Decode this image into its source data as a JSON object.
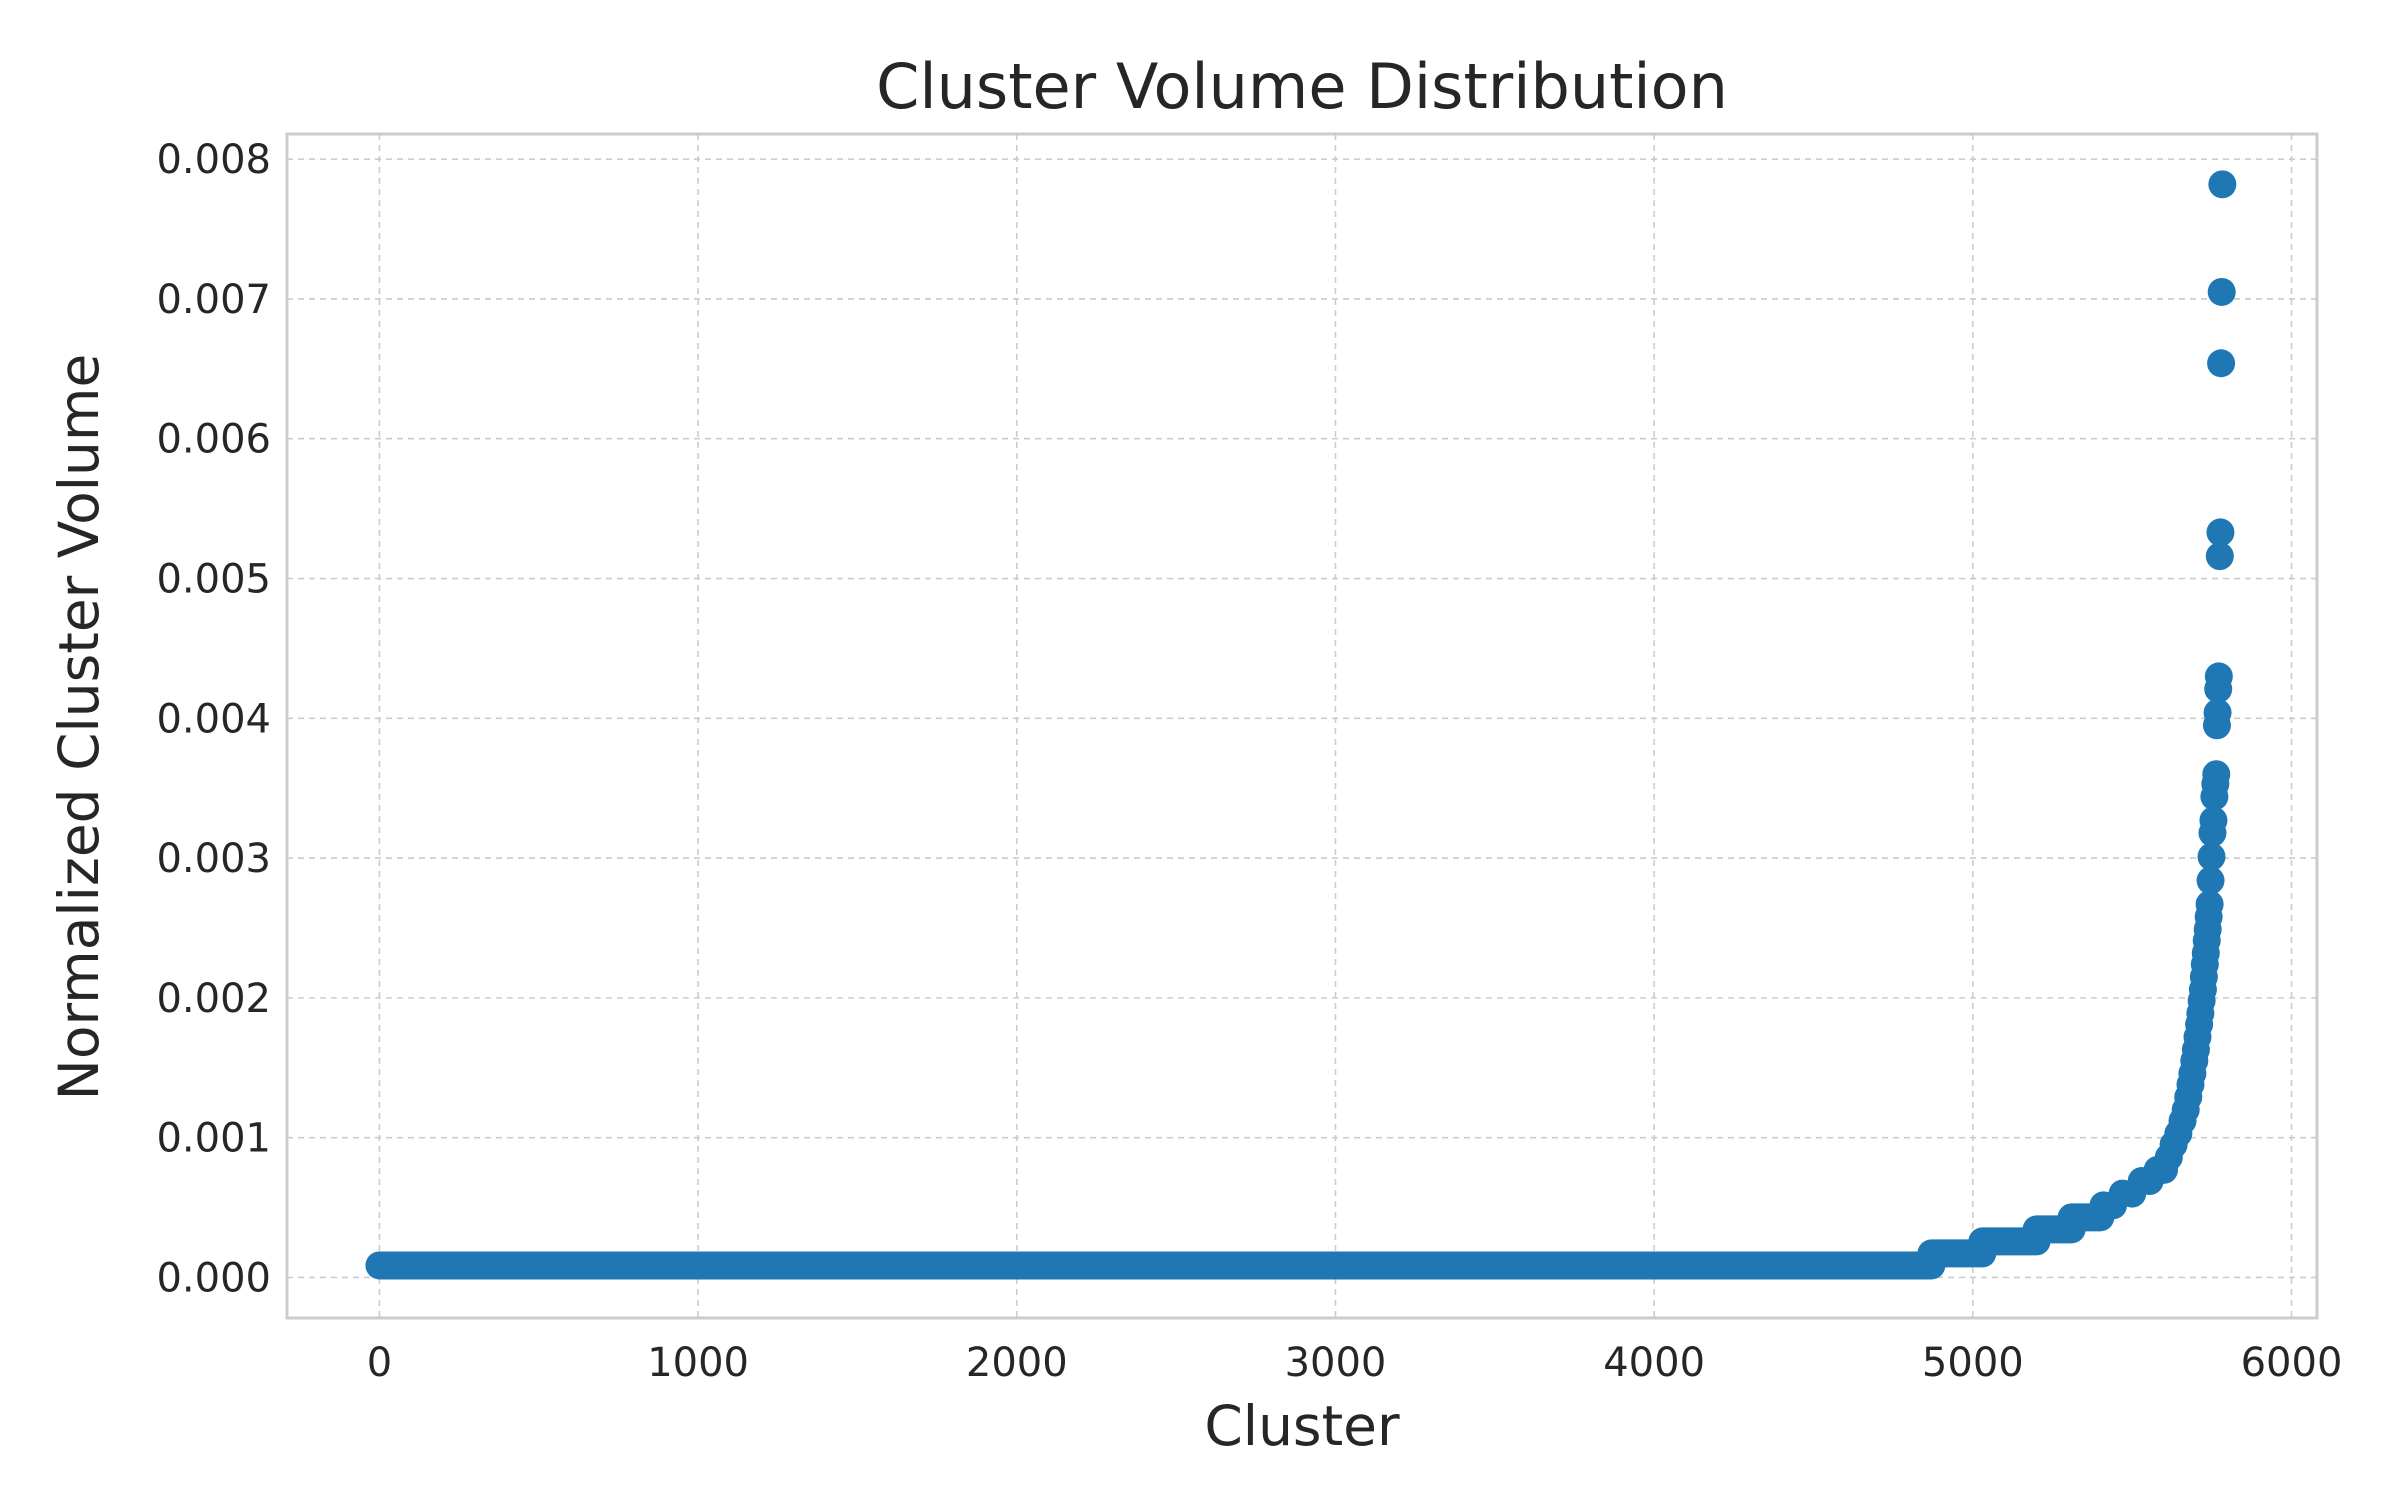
{
  "chart_data": {
    "type": "scatter",
    "title": "Cluster Volume Distribution",
    "xlabel": "Cluster",
    "ylabel": "Normalized Cluster Volume",
    "xlim": [
      -290,
      6080
    ],
    "ylim": [
      -0.00029,
      0.00818
    ],
    "xticks": [
      0,
      1000,
      2000,
      3000,
      4000,
      5000,
      6000
    ],
    "xtick_labels": [
      "0",
      "1000",
      "2000",
      "3000",
      "4000",
      "5000",
      "6000"
    ],
    "yticks": [
      0.0,
      0.001,
      0.002,
      0.003,
      0.004,
      0.005,
      0.006,
      0.007,
      0.008
    ],
    "ytick_labels": [
      "0.000",
      "0.001",
      "0.002",
      "0.003",
      "0.004",
      "0.005",
      "0.006",
      "0.007",
      "0.008"
    ],
    "grid": true,
    "marker_color": "#1f77b4",
    "series": [
      {
        "segments": [
          {
            "x_start": 0,
            "x_end": 4870,
            "y": 8.6e-05
          },
          {
            "x_start": 4870,
            "x_end": 5030,
            "y": 0.000172
          },
          {
            "x_start": 5030,
            "x_end": 5200,
            "y": 0.000258
          },
          {
            "x_start": 5200,
            "x_end": 5310,
            "y": 0.000344
          },
          {
            "x_start": 5310,
            "x_end": 5400,
            "y": 0.00043
          }
        ],
        "points": [
          {
            "x": 5410,
            "y": 0.000516
          },
          {
            "x": 5440,
            "y": 0.000516
          },
          {
            "x": 5470,
            "y": 0.0006
          },
          {
            "x": 5500,
            "y": 0.0006
          },
          {
            "x": 5530,
            "y": 0.00069
          },
          {
            "x": 5555,
            "y": 0.00069
          },
          {
            "x": 5580,
            "y": 0.00077
          },
          {
            "x": 5600,
            "y": 0.00077
          },
          {
            "x": 5615,
            "y": 0.00086
          },
          {
            "x": 5630,
            "y": 0.00095
          },
          {
            "x": 5645,
            "y": 0.00103
          },
          {
            "x": 5658,
            "y": 0.00112
          },
          {
            "x": 5668,
            "y": 0.0012
          },
          {
            "x": 5676,
            "y": 0.00129
          },
          {
            "x": 5683,
            "y": 0.00138
          },
          {
            "x": 5689,
            "y": 0.00146
          },
          {
            "x": 5695,
            "y": 0.00155
          },
          {
            "x": 5700,
            "y": 0.00163
          },
          {
            "x": 5705,
            "y": 0.00172
          },
          {
            "x": 5710,
            "y": 0.00181
          },
          {
            "x": 5714,
            "y": 0.00189
          },
          {
            "x": 5718,
            "y": 0.00198
          },
          {
            "x": 5722,
            "y": 0.00206
          },
          {
            "x": 5725,
            "y": 0.00215
          },
          {
            "x": 5728,
            "y": 0.00224
          },
          {
            "x": 5731,
            "y": 0.00232
          },
          {
            "x": 5734,
            "y": 0.00241
          },
          {
            "x": 5737,
            "y": 0.00249
          },
          {
            "x": 5740,
            "y": 0.00258
          },
          {
            "x": 5743,
            "y": 0.00267
          },
          {
            "x": 5746,
            "y": 0.00284
          },
          {
            "x": 5749,
            "y": 0.00301
          },
          {
            "x": 5752,
            "y": 0.00318
          },
          {
            "x": 5755,
            "y": 0.00327
          },
          {
            "x": 5758,
            "y": 0.00344
          },
          {
            "x": 5761,
            "y": 0.00353
          },
          {
            "x": 5764,
            "y": 0.0036
          },
          {
            "x": 5766,
            "y": 0.00395
          },
          {
            "x": 5768,
            "y": 0.00404
          },
          {
            "x": 5770,
            "y": 0.00421
          },
          {
            "x": 5772,
            "y": 0.0043
          },
          {
            "x": 5775,
            "y": 0.00516
          },
          {
            "x": 5777,
            "y": 0.00533
          },
          {
            "x": 5779,
            "y": 0.00654
          },
          {
            "x": 5781,
            "y": 0.00705
          },
          {
            "x": 5783,
            "y": 0.00782
          }
        ]
      }
    ]
  }
}
